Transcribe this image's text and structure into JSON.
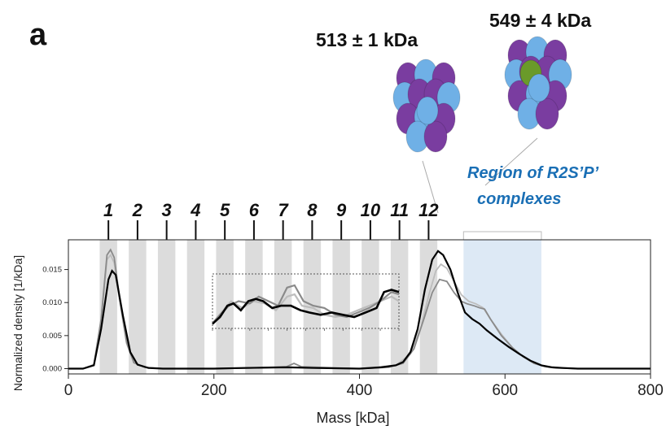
{
  "panel_label": "a",
  "annotations": {
    "complex_513": "513 ± 1 kDa",
    "complex_549": "549 ± 4 kDa",
    "region_line1": "Region of R2S’P’",
    "region_line2": "complexes"
  },
  "colors": {
    "band_fill": "#dcdcdc",
    "region_fill": "#dde9f5",
    "region_label": "#1a6fb5",
    "trace_dark": "#000000",
    "trace_mid": "#8a8a8a",
    "trace_light": "#bdbdbd",
    "subunit_blue": "#6fb0e6",
    "subunit_purple": "#7a3da0",
    "subunit_green": "#6a9a2a"
  },
  "chart_data": {
    "type": "line",
    "xlabel": "Mass [kDa]",
    "ylabel": "Normalized density [1/kDa]",
    "xlim": [
      0,
      800
    ],
    "ylim": [
      -0.0008,
      0.0195
    ],
    "xticks": [
      0,
      200,
      400,
      600,
      800
    ],
    "yticks": [
      0.0,
      0.005,
      0.01,
      0.015
    ],
    "ytick_labels": [
      "0.000",
      "0.005",
      "0.010",
      "0.015"
    ],
    "oligomer_labels": [
      "1",
      "2",
      "3",
      "4",
      "5",
      "6",
      "7",
      "8",
      "9",
      "10",
      "11",
      "12"
    ],
    "oligomer_masses": [
      55,
      95,
      135,
      175,
      215,
      255,
      295,
      335,
      375,
      415,
      455,
      495
    ],
    "band_half_width": 12,
    "region_range": [
      543,
      650
    ],
    "series": [
      {
        "color": "#000000",
        "x": [
          0,
          20,
          35,
          45,
          55,
          60,
          65,
          75,
          85,
          95,
          110,
          130,
          200,
          240,
          300,
          340,
          400,
          430,
          450,
          460,
          470,
          480,
          490,
          500,
          508,
          515,
          525,
          535,
          545,
          555,
          565,
          575,
          590,
          605,
          620,
          635,
          650,
          665,
          680,
          700,
          800
        ],
        "y": [
          0,
          0,
          0.0005,
          0.006,
          0.0135,
          0.0148,
          0.0142,
          0.008,
          0.0025,
          0.0006,
          0.0001,
          0,
          0,
          0.0001,
          0.0002,
          0.0001,
          0,
          0.0002,
          0.0005,
          0.001,
          0.0025,
          0.006,
          0.012,
          0.0165,
          0.0178,
          0.0172,
          0.015,
          0.0115,
          0.0085,
          0.0075,
          0.0068,
          0.0058,
          0.0045,
          0.0033,
          0.0022,
          0.0012,
          0.0005,
          0.0002,
          0.0001,
          0,
          0
        ]
      },
      {
        "color": "#8a8a8a",
        "x": [
          0,
          20,
          35,
          45,
          53,
          58,
          63,
          70,
          80,
          90,
          105,
          130,
          200,
          250,
          300,
          310,
          320,
          400,
          440,
          460,
          475,
          490,
          500,
          510,
          520,
          530,
          540,
          548,
          558,
          565,
          572,
          580,
          595,
          610,
          625,
          640,
          655,
          670,
          700,
          800
        ],
        "y": [
          0,
          0,
          0.0006,
          0.0075,
          0.0172,
          0.018,
          0.0168,
          0.011,
          0.004,
          0.0009,
          0.0002,
          0,
          0,
          0.0001,
          0.0003,
          0.0008,
          0.0003,
          0,
          0.0002,
          0.0008,
          0.003,
          0.008,
          0.0115,
          0.0135,
          0.0132,
          0.0115,
          0.0102,
          0.0098,
          0.0095,
          0.0092,
          0.009,
          0.0075,
          0.005,
          0.0032,
          0.0018,
          0.0008,
          0.0003,
          0.0001,
          0,
          0
        ]
      },
      {
        "color": "#bdbdbd",
        "x": [
          0,
          20,
          35,
          45,
          53,
          58,
          63,
          70,
          80,
          90,
          105,
          130,
          200,
          300,
          400,
          450,
          470,
          485,
          495,
          505,
          512,
          520,
          530,
          540,
          550,
          560,
          570,
          580,
          595,
          610,
          625,
          640,
          660,
          700,
          800
        ],
        "y": [
          0,
          0,
          0.0005,
          0.007,
          0.0165,
          0.0172,
          0.016,
          0.0105,
          0.0038,
          0.0009,
          0.0002,
          0,
          0,
          0.0002,
          0,
          0.0005,
          0.0022,
          0.0065,
          0.011,
          0.0148,
          0.0158,
          0.0152,
          0.0132,
          0.0112,
          0.0102,
          0.0098,
          0.0092,
          0.0075,
          0.0052,
          0.0032,
          0.0018,
          0.0008,
          0.0002,
          0,
          0
        ]
      }
    ],
    "inset": {
      "xlim": [
        200,
        450
      ],
      "ylim": [
        0,
        0.0012
      ],
      "series": [
        {
          "color": "#bdbdbd",
          "x": [
            200,
            212,
            225,
            240,
            255,
            270,
            285,
            300,
            310,
            320,
            335,
            350,
            365,
            380,
            395,
            410,
            425,
            440,
            450
          ],
          "y": [
            0.00012,
            0.00035,
            0.0006,
            0.00045,
            0.0006,
            0.00055,
            0.0004,
            0.0007,
            0.00075,
            0.0005,
            0.00045,
            0.0003,
            0.00025,
            0.0003,
            0.0004,
            0.0005,
            0.0006,
            0.0007,
            0.0006
          ]
        },
        {
          "color": "#8a8a8a",
          "x": [
            200,
            210,
            222,
            235,
            250,
            262,
            275,
            288,
            300,
            310,
            322,
            335,
            350,
            365,
            380,
            395,
            410,
            425,
            440,
            450
          ],
          "y": [
            0.0001,
            0.0003,
            0.0005,
            0.0006,
            0.00055,
            0.0007,
            0.0006,
            0.0005,
            0.0009,
            0.00095,
            0.0006,
            0.0005,
            0.00045,
            0.0003,
            0.00025,
            0.00035,
            0.00045,
            0.0006,
            0.0008,
            0.00075
          ]
        },
        {
          "color": "#000000",
          "x": [
            200,
            210,
            220,
            228,
            238,
            248,
            258,
            268,
            280,
            292,
            305,
            318,
            330,
            345,
            360,
            375,
            390,
            405,
            420,
            430,
            440,
            450
          ],
          "y": [
            0.0001,
            0.00025,
            0.0005,
            0.00055,
            0.0004,
            0.0006,
            0.00065,
            0.0006,
            0.00045,
            0.0005,
            0.0005,
            0.0004,
            0.00035,
            0.0003,
            0.00035,
            0.0003,
            0.00025,
            0.00035,
            0.00045,
            0.0008,
            0.00085,
            0.0008
          ]
        }
      ]
    }
  }
}
